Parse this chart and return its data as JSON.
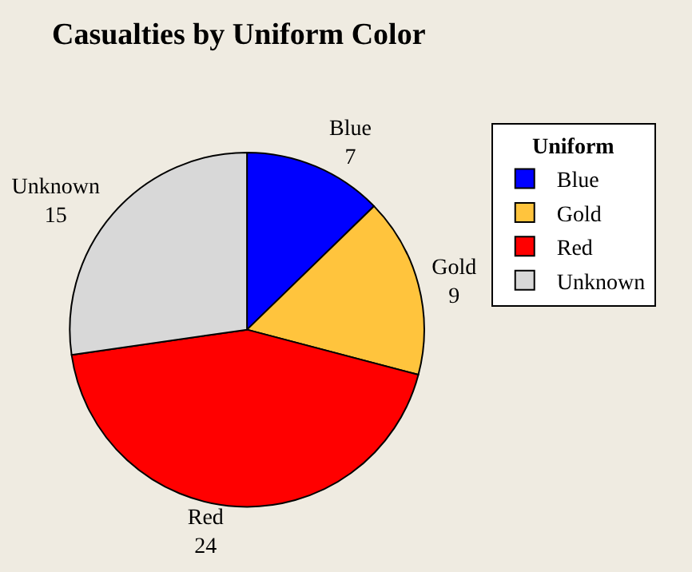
{
  "chart_data": {
    "type": "pie",
    "title": "Casualties by Uniform Color",
    "legend_title": "Uniform",
    "categories": [
      "Blue",
      "Gold",
      "Red",
      "Unknown"
    ],
    "values": [
      7,
      9,
      24,
      15
    ],
    "colors": [
      "#0000ff",
      "#ffc43d",
      "#ff0000",
      "#d8d8d8"
    ],
    "data_labels": true,
    "legend": "top right"
  }
}
